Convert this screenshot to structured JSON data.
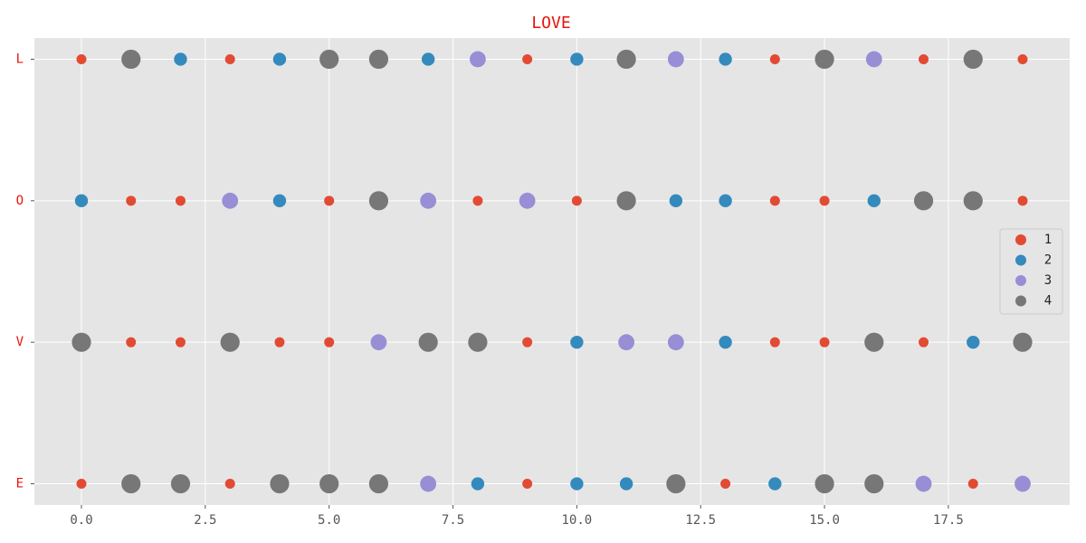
{
  "chart_data": {
    "type": "scatter",
    "title": "LOVE",
    "y_categories": [
      "L",
      "O",
      "V",
      "E"
    ],
    "xlim": [
      -0.95,
      19.95
    ],
    "ylim": [
      -0.15,
      3.15
    ],
    "xticks": [
      {
        "value": 0,
        "label": "0.0"
      },
      2.5,
      {
        "value": 5,
        "label": "5.0"
      },
      7.5,
      {
        "value": 10,
        "label": "10.0"
      },
      12.5,
      {
        "value": 15,
        "label": "15.0"
      },
      17.5
    ],
    "grid": true,
    "legend": "right",
    "series": [
      {
        "name": "1",
        "color": "#E24A33",
        "x": [
          0,
          3,
          9,
          14,
          17,
          19,
          1,
          2,
          5,
          8,
          10,
          14,
          15,
          19,
          1,
          2,
          4,
          5,
          9,
          14,
          15,
          17,
          0,
          3,
          9,
          13,
          18
        ],
        "y": [
          "L",
          "L",
          "L",
          "L",
          "L",
          "L",
          "O",
          "O",
          "O",
          "O",
          "O",
          "O",
          "O",
          "O",
          "V",
          "V",
          "V",
          "V",
          "V",
          "V",
          "V",
          "V",
          "E",
          "E",
          "E",
          "E",
          "E"
        ]
      },
      {
        "name": "2",
        "color": "#348ABD",
        "x": [
          2,
          4,
          7,
          10,
          13,
          0,
          4,
          12,
          13,
          16,
          10,
          13,
          18,
          8,
          10,
          11,
          14
        ],
        "y": [
          "L",
          "L",
          "L",
          "L",
          "L",
          "O",
          "O",
          "O",
          "O",
          "O",
          "V",
          "V",
          "V",
          "E",
          "E",
          "E",
          "E"
        ]
      },
      {
        "name": "3",
        "color": "#988ED5",
        "x": [
          8,
          12,
          16,
          3,
          7,
          9,
          6,
          11,
          12,
          7,
          17,
          19
        ],
        "y": [
          "L",
          "L",
          "L",
          "O",
          "O",
          "O",
          "V",
          "V",
          "V",
          "E",
          "E",
          "E"
        ]
      },
      {
        "name": "4",
        "color": "#777777",
        "x": [
          1,
          5,
          6,
          11,
          15,
          18,
          6,
          11,
          17,
          18,
          0,
          3,
          7,
          8,
          16,
          19,
          1,
          2,
          4,
          5,
          6,
          12,
          15,
          16
        ],
        "y": [
          "L",
          "L",
          "L",
          "L",
          "L",
          "L",
          "O",
          "O",
          "O",
          "O",
          "V",
          "V",
          "V",
          "V",
          "V",
          "V",
          "E",
          "E",
          "E",
          "E",
          "E",
          "E",
          "E",
          "E"
        ]
      }
    ]
  }
}
